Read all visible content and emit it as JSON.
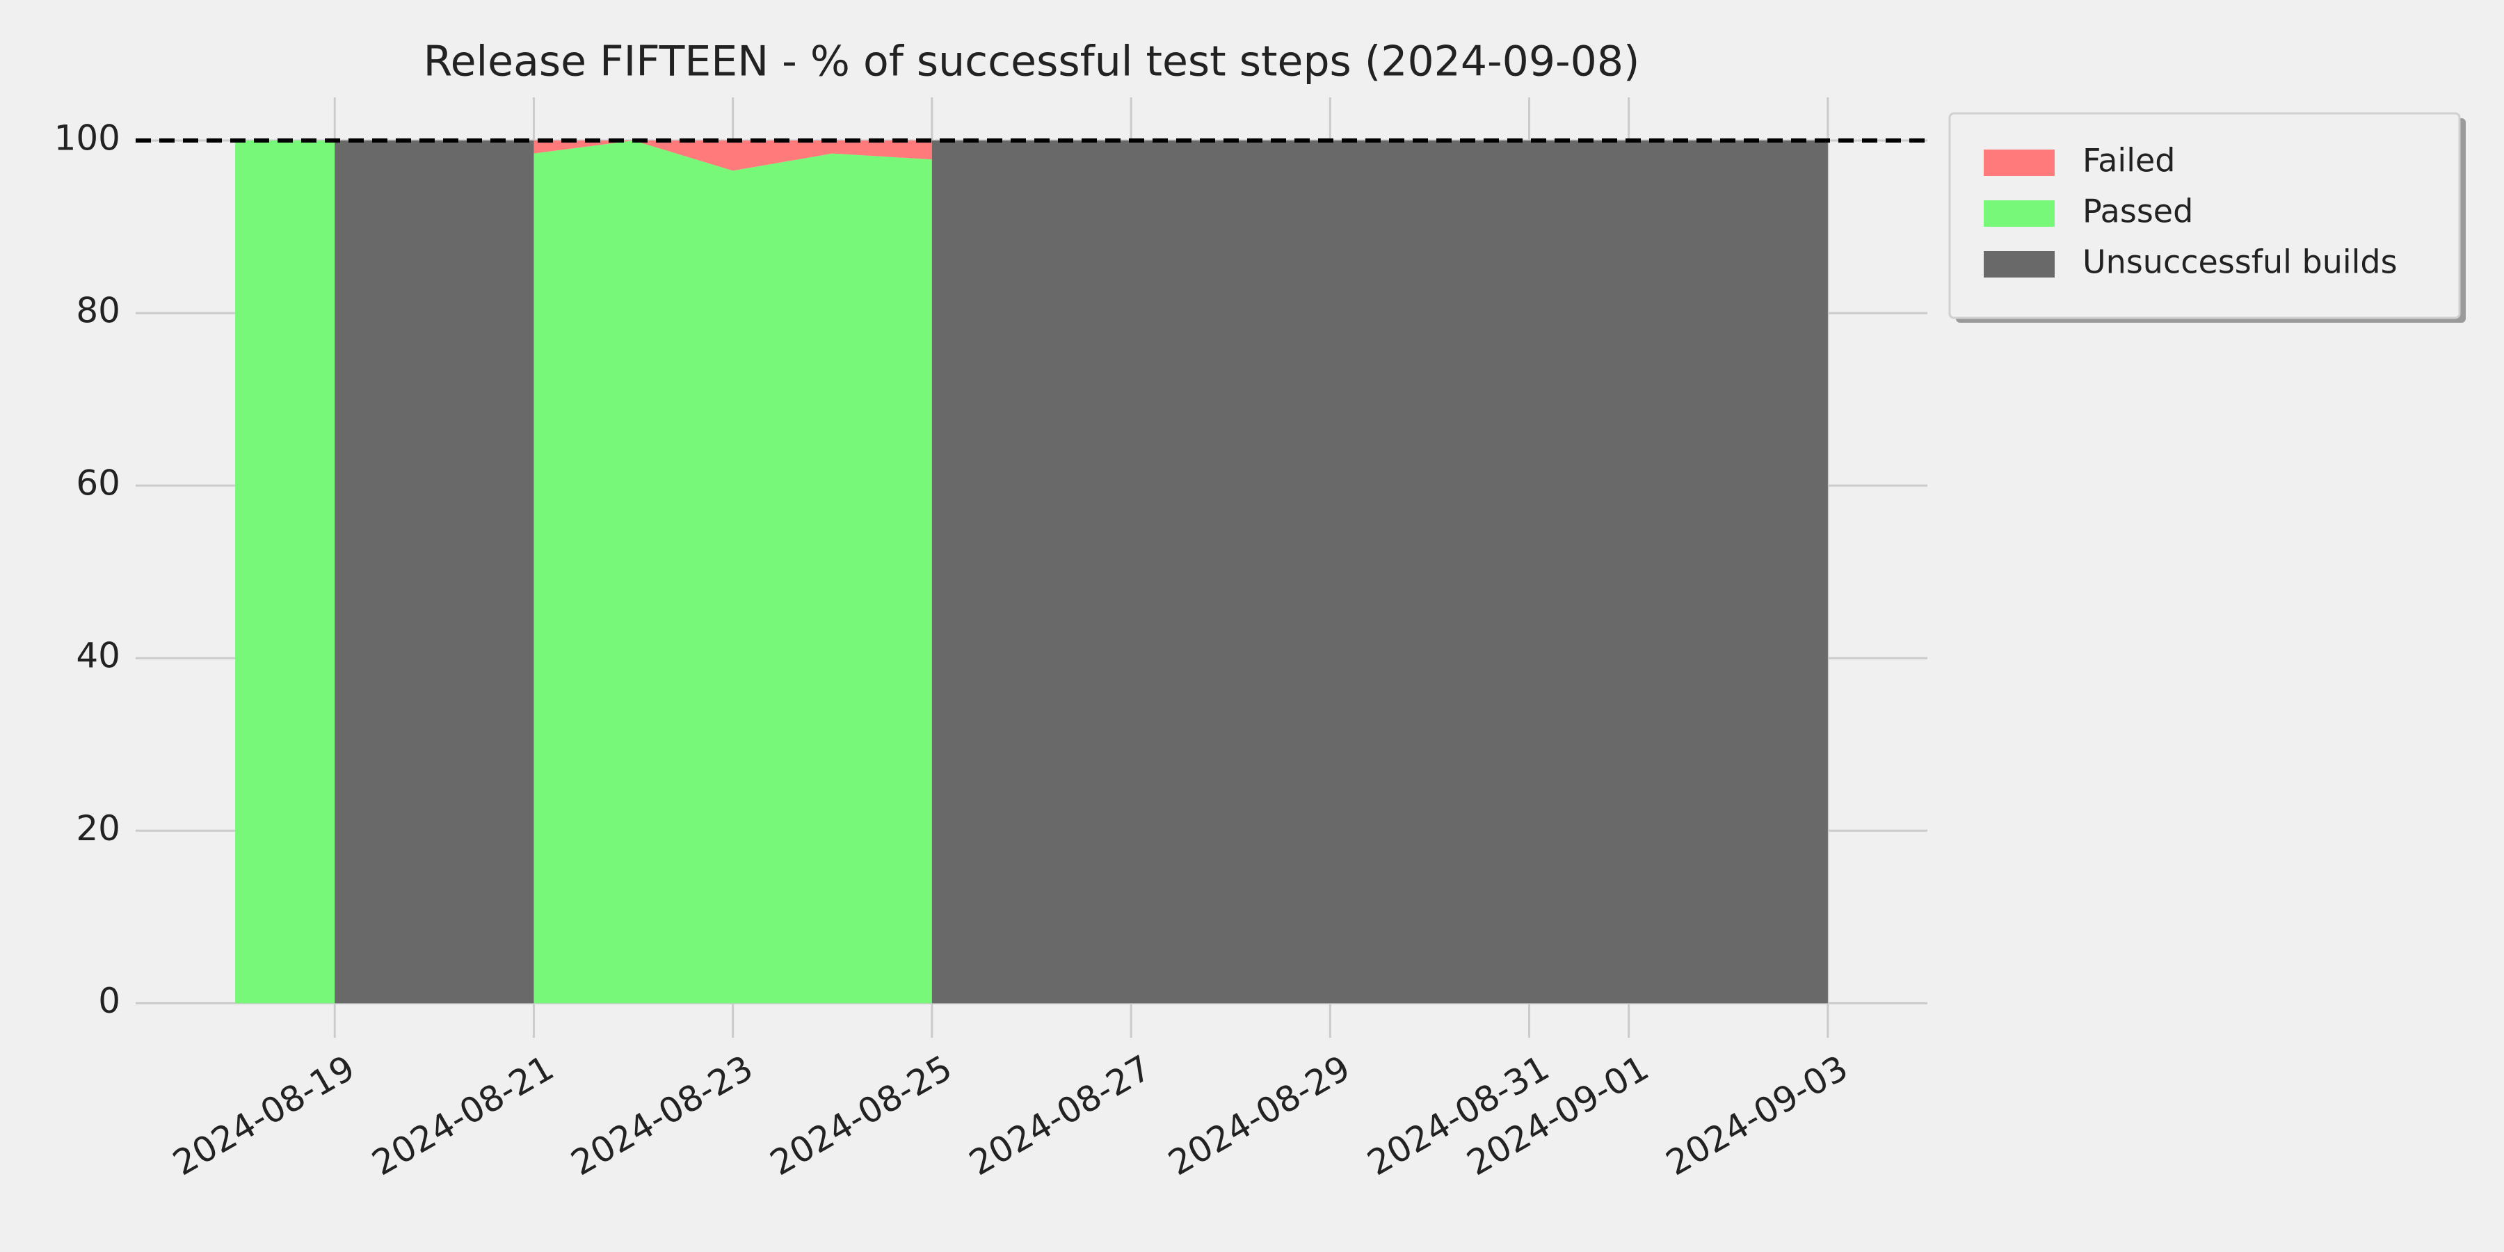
{
  "chart_data": {
    "type": "stacked_area",
    "title": "Release FIFTEEN - % of successful test steps (2024-09-08)",
    "x": [
      "2024-08-18",
      "2024-08-19",
      "2024-08-19",
      "2024-08-21",
      "2024-08-21",
      "2024-08-22",
      "2024-08-23",
      "2024-08-24",
      "2024-08-25",
      "2024-08-25",
      "2024-09-03"
    ],
    "series": [
      {
        "name": "Passed",
        "color": "#78f878",
        "values": [
          100,
          100,
          0,
          0,
          98.5,
          100,
          96.5,
          98.5,
          97.8,
          0,
          0
        ]
      },
      {
        "name": "Failed",
        "color": "#ff7b7b",
        "values": [
          0,
          0,
          0,
          0,
          1.5,
          0,
          3.5,
          1.5,
          2.2,
          0,
          0
        ]
      },
      {
        "name": "Unsuccessful builds",
        "color": "#696969",
        "values": [
          0,
          0,
          100,
          100,
          0,
          0,
          0,
          0,
          0,
          100,
          100
        ]
      }
    ],
    "legend_order": [
      "Failed",
      "Passed",
      "Unsuccessful builds"
    ],
    "legend_position": "upper right outside",
    "reference_line": 100,
    "xlim": [
      "2024-08-17",
      "2024-09-04"
    ],
    "xticks": [
      "2024-08-19",
      "2024-08-21",
      "2024-08-23",
      "2024-08-25",
      "2024-08-27",
      "2024-08-29",
      "2024-08-31",
      "2024-09-01",
      "2024-09-03"
    ],
    "ylim": [
      -4,
      105
    ],
    "yticks": [
      0,
      20,
      40,
      60,
      80,
      100
    ],
    "grid": true
  }
}
